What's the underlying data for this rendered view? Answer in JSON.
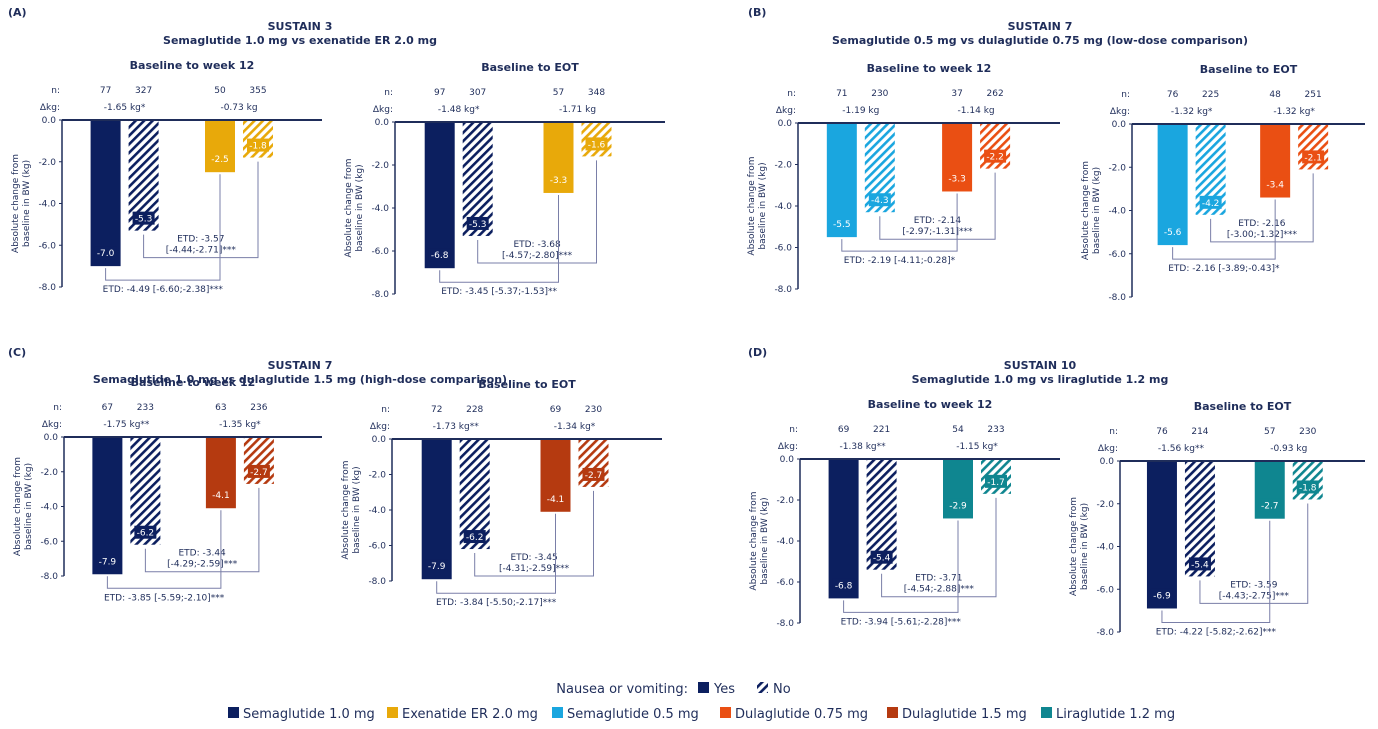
{
  "colors": {
    "sema_1_0": "#0c1f5f",
    "exenatide": "#e8a90a",
    "sema_0_5": "#1aa6df",
    "dula_0_75": "#ea4f13",
    "dula_1_5": "#b53a10",
    "lira_1_2": "#0f8690",
    "axis": "#1f2d5a",
    "text": "#1f2d5a",
    "bracket": "#7a7fa8"
  },
  "legend": {
    "nausea_label": "Nausea or vomiting:",
    "yes": "Yes",
    "no": "No",
    "items": [
      {
        "label": "Semaglutide 1.0 mg",
        "color": "#0c1f5f"
      },
      {
        "label": "Exenatide ER 2.0 mg",
        "color": "#e8a90a"
      },
      {
        "label": "Semaglutide 0.5 mg",
        "color": "#1aa6df"
      },
      {
        "label": "Dulaglutide 0.75 mg",
        "color": "#ea4f13"
      },
      {
        "label": "Dulaglutide 1.5 mg",
        "color": "#b53a10"
      },
      {
        "label": "Liraglutide 1.2 mg",
        "color": "#0f8690"
      }
    ]
  },
  "ylabel_line1": "Absolute change from",
  "ylabel_line2": "baseline in BW (kg)",
  "n_label": "n:",
  "dkg_label": "Δkg:",
  "chart_data": [
    {
      "panel": "(A)",
      "title": "SUSTAIN 3",
      "subtitle": "Semaglutide 1.0 mg vs exenatide ER 2.0 mg",
      "charts": [
        {
          "type": "bar",
          "title": "Baseline to week 12",
          "ylim": [
            -8,
            0
          ],
          "yticks": [
            "0.0",
            "-2.0",
            "-4.0",
            "-6.0",
            "-8.0"
          ],
          "groups": [
            {
              "drug": "Semaglutide 1.0 mg",
              "color_key": "sema_1_0",
              "n": [
                "77",
                "327"
              ],
              "dkg": "-1.65 kg*",
              "values": [
                -7.0,
                -5.3
              ],
              "labels": [
                "-7.0",
                "-5.3"
              ]
            },
            {
              "drug": "Exenatide ER 2.0 mg",
              "color_key": "exenatide",
              "n": [
                "50",
                "355"
              ],
              "dkg": "-0.73 kg",
              "values": [
                -2.5,
                -1.8
              ],
              "labels": [
                "-2.5",
                "-1.8"
              ]
            }
          ],
          "etd_no": [
            "ETD: -3.57",
            "[-4.44;-2.71]***"
          ],
          "etd_yes": "ETD: -4.49 [-6.60;-2.38]***"
        },
        {
          "type": "bar",
          "title": "Baseline to EOT",
          "ylim": [
            -8,
            0
          ],
          "yticks": [
            "0.0",
            "-2.0",
            "-4.0",
            "-6.0",
            "-8.0"
          ],
          "groups": [
            {
              "drug": "Semaglutide 1.0 mg",
              "color_key": "sema_1_0",
              "n": [
                "97",
                "307"
              ],
              "dkg": "-1.48 kg*",
              "values": [
                -6.8,
                -5.3
              ],
              "labels": [
                "-6.8",
                "-5.3"
              ]
            },
            {
              "drug": "Exenatide ER 2.0 mg",
              "color_key": "exenatide",
              "n": [
                "57",
                "348"
              ],
              "dkg": "-1.71 kg",
              "values": [
                -3.3,
                -1.6
              ],
              "labels": [
                "-3.3",
                "-1.6"
              ]
            }
          ],
          "etd_no": [
            "ETD: -3.68",
            "[-4.57;-2.80]***"
          ],
          "etd_yes": "ETD: -3.45 [-5.37;-1.53]**"
        }
      ]
    },
    {
      "panel": "(B)",
      "title": "SUSTAIN 7",
      "subtitle": "Semaglutide 0.5 mg vs dulaglutide 0.75 mg (low-dose comparison)",
      "charts": [
        {
          "type": "bar",
          "title": "Baseline to week 12",
          "ylim": [
            -8,
            0
          ],
          "yticks": [
            "0.0",
            "-2.0",
            "-4.0",
            "-6.0",
            "-8.0"
          ],
          "groups": [
            {
              "drug": "Semaglutide 0.5 mg",
              "color_key": "sema_0_5",
              "n": [
                "71",
                "230"
              ],
              "dkg": "-1.19 kg",
              "values": [
                -5.5,
                -4.3
              ],
              "labels": [
                "-5.5",
                "-4.3"
              ]
            },
            {
              "drug": "Dulaglutide 0.75 mg",
              "color_key": "dula_0_75",
              "n": [
                "37",
                "262"
              ],
              "dkg": "-1.14 kg",
              "values": [
                -3.3,
                -2.2
              ],
              "labels": [
                "-3.3",
                "-2.2"
              ]
            }
          ],
          "etd_no": [
            "ETD: -2.14",
            "[-2.97;-1.31]***"
          ],
          "etd_yes": "ETD: -2.19 [-4.11;-0.28]*"
        },
        {
          "type": "bar",
          "title": "Baseline to EOT",
          "ylim": [
            -8,
            0
          ],
          "yticks": [
            "0.0",
            "-2.0",
            "-4.0",
            "-6.0",
            "-8.0"
          ],
          "groups": [
            {
              "drug": "Semaglutide 0.5 mg",
              "color_key": "sema_0_5",
              "n": [
                "76",
                "225"
              ],
              "dkg": "-1.32 kg*",
              "values": [
                -5.6,
                -4.2
              ],
              "labels": [
                "-5.6",
                "-4.2"
              ]
            },
            {
              "drug": "Dulaglutide 0.75 mg",
              "color_key": "dula_0_75",
              "n": [
                "48",
                "251"
              ],
              "dkg": "-1.32 kg*",
              "values": [
                -3.4,
                -2.1
              ],
              "labels": [
                "-3.4",
                "-2.1"
              ]
            }
          ],
          "etd_no": [
            "ETD: -2.16",
            "[-3.00;-1.32]***"
          ],
          "etd_yes": "ETD: -2.16 [-3.89;-0.43]*"
        }
      ]
    },
    {
      "panel": "(C)",
      "title": "SUSTAIN 7",
      "subtitle": "Semaglutide 1.0 mg vs dulaglutide 1.5 mg (high-dose comparison)",
      "charts": [
        {
          "type": "bar",
          "title": "Baseline to week 12",
          "ylim": [
            -8,
            0
          ],
          "yticks": [
            "0.0",
            "-2.0",
            "-4.0",
            "-6.0",
            "-8.0"
          ],
          "groups": [
            {
              "drug": "Semaglutide 1.0 mg",
              "color_key": "sema_1_0",
              "n": [
                "67",
                "233"
              ],
              "dkg": "-1.75 kg**",
              "values": [
                -7.9,
                -6.2
              ],
              "labels": [
                "-7.9",
                "-6.2"
              ]
            },
            {
              "drug": "Dulaglutide 1.5 mg",
              "color_key": "dula_1_5",
              "n": [
                "63",
                "236"
              ],
              "dkg": "-1.35 kg*",
              "values": [
                -4.1,
                -2.7
              ],
              "labels": [
                "-4.1",
                "-2.7"
              ]
            }
          ],
          "etd_no": [
            "ETD: -3.44",
            "[-4.29;-2.59]***"
          ],
          "etd_yes": "ETD: -3.85 [-5.59;-2.10]***"
        },
        {
          "type": "bar",
          "title": "Baseline to EOT",
          "ylim": [
            -8,
            0
          ],
          "yticks": [
            "0.0",
            "-2.0",
            "-4.0",
            "-6.0",
            "-8.0"
          ],
          "groups": [
            {
              "drug": "Semaglutide 1.0 mg",
              "color_key": "sema_1_0",
              "n": [
                "72",
                "228"
              ],
              "dkg": "-1.73 kg**",
              "values": [
                -7.9,
                -6.2
              ],
              "labels": [
                "-7.9",
                "-6.2"
              ]
            },
            {
              "drug": "Dulaglutide 1.5 mg",
              "color_key": "dula_1_5",
              "n": [
                "69",
                "230"
              ],
              "dkg": "-1.34 kg*",
              "values": [
                -4.1,
                -2.7
              ],
              "labels": [
                "-4.1",
                "-2.7"
              ]
            }
          ],
          "etd_no": [
            "ETD: -3.45",
            "[-4.31;-2.59]***"
          ],
          "etd_yes": "ETD: -3.84 [-5.50;-2.17]***"
        }
      ]
    },
    {
      "panel": "(D)",
      "title": "SUSTAIN 10",
      "subtitle": "Semaglutide 1.0 mg vs liraglutide 1.2 mg",
      "charts": [
        {
          "type": "bar",
          "title": "Baseline to week 12",
          "ylim": [
            -8,
            0
          ],
          "yticks": [
            "0.0",
            "-2.0",
            "-4.0",
            "-6.0",
            "-8.0"
          ],
          "groups": [
            {
              "drug": "Semaglutide 1.0 mg",
              "color_key": "sema_1_0",
              "n": [
                "69",
                "221"
              ],
              "dkg": "-1.38 kg**",
              "values": [
                -6.8,
                -5.4
              ],
              "labels": [
                "-6.8",
                "-5.4"
              ]
            },
            {
              "drug": "Liraglutide 1.2 mg",
              "color_key": "lira_1_2",
              "n": [
                "54",
                "233"
              ],
              "dkg": "-1.15 kg*",
              "values": [
                -2.9,
                -1.7
              ],
              "labels": [
                "-2.9",
                "-1.7"
              ]
            }
          ],
          "etd_no": [
            "ETD: -3.71",
            "[-4.54;-2.88]***"
          ],
          "etd_yes": "ETD: -3.94 [-5.61;-2.28]***"
        },
        {
          "type": "bar",
          "title": "Baseline to EOT",
          "ylim": [
            -8,
            0
          ],
          "yticks": [
            "0.0",
            "-2.0",
            "-4.0",
            "-6.0",
            "-8.0"
          ],
          "groups": [
            {
              "drug": "Semaglutide 1.0 mg",
              "color_key": "sema_1_0",
              "n": [
                "76",
                "214"
              ],
              "dkg": "-1.56 kg**",
              "values": [
                -6.9,
                -5.4
              ],
              "labels": [
                "-6.9",
                "-5.4"
              ]
            },
            {
              "drug": "Liraglutide 1.2 mg",
              "color_key": "lira_1_2",
              "n": [
                "57",
                "230"
              ],
              "dkg": "-0.93 kg",
              "values": [
                -2.7,
                -1.8
              ],
              "labels": [
                "-2.7",
                "-1.8"
              ]
            }
          ],
          "etd_no": [
            "ETD: -3.59",
            "[-4.43;-2.75]***"
          ],
          "etd_yes": "ETD: -4.22 [-5.82;-2.62]***"
        }
      ]
    }
  ]
}
